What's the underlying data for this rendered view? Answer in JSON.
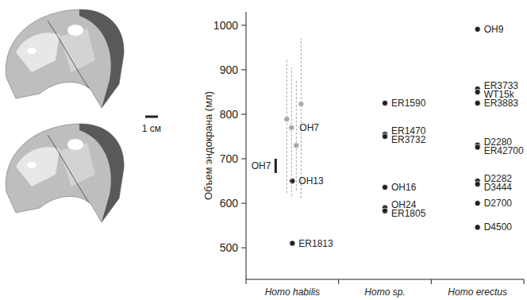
{
  "chart_data": {
    "type": "scatter",
    "y_label": "Объем эндокрана (мл)",
    "scale_bar_label": "1 см",
    "categories": [
      "Homo habilis",
      "Homo sp.",
      "Homo erectus"
    ],
    "ylim": [
      429,
      1030
    ],
    "yticks": [
      500,
      600,
      700,
      800,
      900,
      1000
    ],
    "series": [
      {
        "type": "scatter",
        "color": "#231f20",
        "marker": "circle",
        "x": [
          "Homo habilis",
          "Homo habilis",
          "Homo sp.",
          "Homo sp.",
          "Homo sp.",
          "Homo sp.",
          "Homo sp.",
          "Homo sp.",
          "Homo erectus",
          "Homo erectus",
          "Homo erectus",
          "Homo erectus",
          "Homo erectus",
          "Homo erectus",
          "Homo erectus",
          "Homo erectus",
          "Homo erectus",
          "Homo erectus"
        ],
        "values": [
          510,
          650,
          825,
          755,
          750,
          636,
          590,
          583,
          991,
          857,
          850,
          825,
          731,
          726,
          650,
          643,
          600,
          546
        ],
        "point_labels": [
          "ER1813",
          "OH13",
          "ER1590",
          "ER1470",
          "ER3732",
          "OH16",
          "OH24",
          "ER1805",
          "OH9",
          "ER3733",
          "WT15k",
          "ER3883",
          "D2280",
          "ER42700",
          "D2282",
          "D3444",
          "D2700",
          "D4500"
        ]
      },
      {
        "type": "scatter",
        "color": "#a7a9ac",
        "marker": "circle",
        "line_style": "dashed",
        "x": [
          "Homo habilis",
          "Homo habilis",
          "Homo habilis",
          "Homo habilis"
        ],
        "values": [
          789,
          770,
          730,
          823
        ],
        "low": [
          623,
          616,
          629,
          611
        ],
        "high": [
          923,
          905,
          878,
          971
        ],
        "point_labels": [
          null,
          "OH7",
          null,
          null
        ]
      },
      {
        "type": "range",
        "color": "#231f20",
        "x": [
          "Homo habilis"
        ],
        "low": [
          668
        ],
        "high": [
          700
        ],
        "point_labels": [
          "OH7"
        ]
      }
    ]
  }
}
